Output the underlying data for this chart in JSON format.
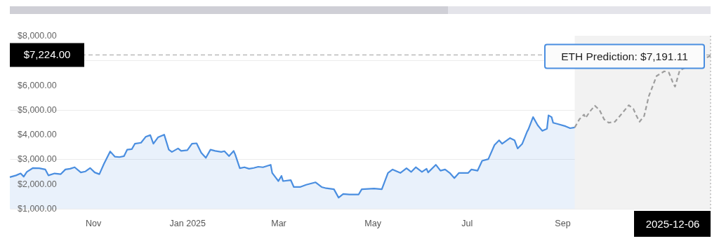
{
  "chart_data": {
    "type": "line",
    "xlim": [
      "2024-09-08",
      "2025-12-06"
    ],
    "xticks": [
      {
        "value": "2024-11-01",
        "label": "Nov"
      },
      {
        "value": "2025-01-01",
        "label": "Jan 2025"
      },
      {
        "value": "2025-03-01",
        "label": "Mar"
      },
      {
        "value": "2025-05-01",
        "label": "May"
      },
      {
        "value": "2025-07-01",
        "label": "Jul"
      },
      {
        "value": "2025-09-01",
        "label": "Sep"
      }
    ],
    "ylim": [
      1000,
      8000
    ],
    "yticks": [
      {
        "value": 1000,
        "label": "$1,000.00"
      },
      {
        "value": 2000,
        "label": "$2,000.00"
      },
      {
        "value": 3000,
        "label": "$3,000.00"
      },
      {
        "value": 4000,
        "label": "$4,000.00"
      },
      {
        "value": 5000,
        "label": "$5,000.00"
      },
      {
        "value": 6000,
        "label": "$6,000.00"
      },
      {
        "value": 7000,
        "label": null
      },
      {
        "value": 8000,
        "label": "$8,000.00"
      }
    ],
    "grid": "y",
    "series": [
      {
        "type": "area",
        "color": "#4a8ee0",
        "x": [
          "2024-09-08",
          "2024-09-12",
          "2024-09-15",
          "2024-09-17",
          "2024-09-19",
          "2024-09-23",
          "2024-09-27",
          "2024-10-01",
          "2024-10-03",
          "2024-10-07",
          "2024-10-11",
          "2024-10-14",
          "2024-10-17",
          "2024-10-20",
          "2024-10-24",
          "2024-10-27",
          "2024-10-30",
          "2024-11-02",
          "2024-11-05",
          "2024-11-08",
          "2024-11-12",
          "2024-11-15",
          "2024-11-18",
          "2024-11-21",
          "2024-11-23",
          "2024-11-26",
          "2024-11-28",
          "2024-12-02",
          "2024-12-05",
          "2024-12-08",
          "2024-12-10",
          "2024-12-13",
          "2024-12-17",
          "2024-12-20",
          "2024-12-22",
          "2024-12-26",
          "2024-12-28",
          "2025-01-01",
          "2025-01-04",
          "2025-01-07",
          "2025-01-10",
          "2025-01-13",
          "2025-01-16",
          "2025-01-19",
          "2025-01-23",
          "2025-01-25",
          "2025-01-28",
          "2025-01-31",
          "2025-02-01",
          "2025-02-04",
          "2025-02-07",
          "2025-02-10",
          "2025-02-13",
          "2025-02-16",
          "2025-02-19",
          "2025-02-24",
          "2025-02-25",
          "2025-03-01",
          "2025-03-03",
          "2025-03-04",
          "2025-03-09",
          "2025-03-11",
          "2025-03-15",
          "2025-03-19",
          "2025-03-25",
          "2025-03-29",
          "2025-04-01",
          "2025-04-06",
          "2025-04-09",
          "2025-04-12",
          "2025-04-16",
          "2025-04-22",
          "2025-04-24",
          "2025-05-02",
          "2025-05-07",
          "2025-05-11",
          "2025-05-14",
          "2025-05-19",
          "2025-05-23",
          "2025-05-26",
          "2025-05-29",
          "2025-06-02",
          "2025-06-05",
          "2025-06-06",
          "2025-06-11",
          "2025-06-14",
          "2025-06-17",
          "2025-06-20",
          "2025-06-23",
          "2025-06-26",
          "2025-07-02",
          "2025-07-04",
          "2025-07-08",
          "2025-07-11",
          "2025-07-15",
          "2025-07-19",
          "2025-07-22",
          "2025-07-24",
          "2025-07-29",
          "2025-08-01",
          "2025-08-03",
          "2025-08-06",
          "2025-08-09",
          "2025-08-10",
          "2025-08-13",
          "2025-08-16",
          "2025-08-19",
          "2025-08-22",
          "2025-08-23",
          "2025-08-25",
          "2025-08-26",
          "2025-08-29",
          "2025-09-03",
          "2025-09-06",
          "2025-09-09"
        ],
        "values": [
          2280,
          2350,
          2430,
          2300,
          2490,
          2650,
          2640,
          2590,
          2350,
          2430,
          2400,
          2590,
          2620,
          2680,
          2470,
          2510,
          2650,
          2470,
          2400,
          2820,
          3320,
          3110,
          3090,
          3130,
          3390,
          3410,
          3630,
          3670,
          3910,
          3980,
          3630,
          3890,
          4000,
          3390,
          3300,
          3440,
          3340,
          3370,
          3630,
          3650,
          3270,
          3060,
          3390,
          3340,
          3300,
          3330,
          3130,
          3340,
          3200,
          2640,
          2680,
          2620,
          2650,
          2700,
          2680,
          2780,
          2450,
          2120,
          2330,
          2120,
          2160,
          1880,
          1880,
          1970,
          2070,
          1880,
          1830,
          1790,
          1450,
          1600,
          1580,
          1580,
          1790,
          1820,
          1790,
          2450,
          2590,
          2450,
          2640,
          2490,
          2680,
          2490,
          2620,
          2470,
          2780,
          2540,
          2590,
          2450,
          2240,
          2450,
          2450,
          2590,
          2540,
          2940,
          3010,
          3580,
          3770,
          3630,
          3860,
          3770,
          3440,
          3630,
          4100,
          4220,
          4710,
          4380,
          4150,
          4240,
          4780,
          4710,
          4480,
          4430,
          4340,
          4260,
          4290
        ]
      },
      {
        "type": "line",
        "color": "#9e9e9e",
        "line_style": "dashed",
        "x": [
          "2025-09-09",
          "2025-09-12",
          "2025-09-15",
          "2025-09-16",
          "2025-09-19",
          "2025-09-22",
          "2025-09-25",
          "2025-09-28",
          "2025-10-01",
          "2025-10-05",
          "2025-10-09",
          "2025-10-14",
          "2025-10-17",
          "2025-10-19",
          "2025-10-21",
          "2025-10-24",
          "2025-10-27",
          "2025-10-30",
          "2025-11-01",
          "2025-11-06",
          "2025-11-09",
          "2025-11-12",
          "2025-11-13",
          "2025-11-16",
          "2025-12-06"
        ],
        "values": [
          4290,
          4620,
          4810,
          4670,
          4950,
          5170,
          5000,
          4620,
          4480,
          4520,
          4810,
          5190,
          5040,
          4760,
          4520,
          4760,
          5560,
          6040,
          6370,
          6560,
          6510,
          6040,
          5940,
          6600,
          7191.11
        ]
      }
    ],
    "bands": [
      {
        "axis": "x",
        "from": "2025-09-09",
        "to": "2025-12-06",
        "color": "#f2f2f2"
      }
    ],
    "ref_lines": [
      {
        "axis": "y",
        "value": 7224,
        "label": "$7,224.00",
        "color": "#9e9e9e",
        "line_style": "dashed"
      },
      {
        "axis": "x",
        "value": "2025-12-06",
        "label": "2025-12-06",
        "color": "#9e9e9e",
        "line_style": "dotted"
      }
    ],
    "annotations": [
      {
        "text": "ETH Prediction: $7,191.11",
        "x": "2025-12-06",
        "y": 7191.11
      }
    ]
  }
}
